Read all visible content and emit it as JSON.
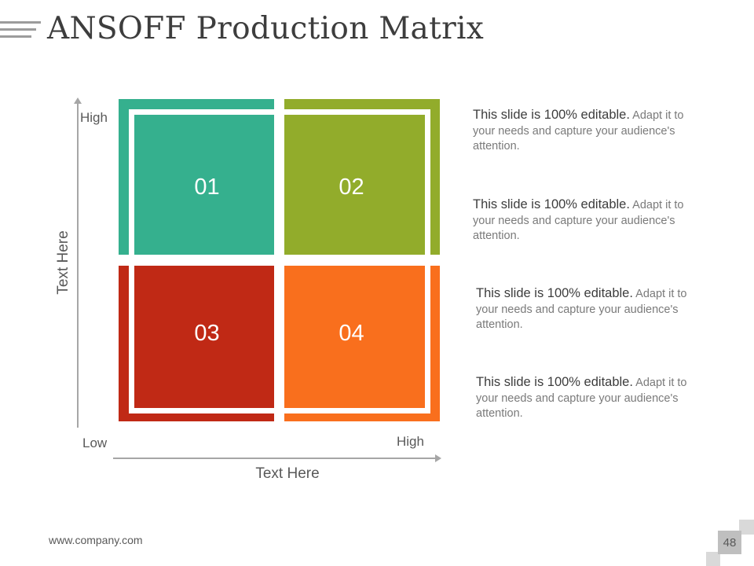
{
  "slide": {
    "title": "ANSOFF Production Matrix",
    "footer": "www.company.com",
    "page_number": "48"
  },
  "axes": {
    "y_title": "Text Here",
    "x_title": "Text Here",
    "y_high": "High",
    "x_low": "Low",
    "x_high": "High"
  },
  "quadrants": [
    {
      "label": "01",
      "color": "#35b08e"
    },
    {
      "label": "02",
      "color": "#92ac2b"
    },
    {
      "label": "03",
      "color": "#c02915"
    },
    {
      "label": "04",
      "color": "#f96f1d"
    }
  ],
  "descriptions": [
    {
      "bold": "This slide is 100% editable.",
      "rest": " Adapt it to your needs and capture your audience's attention."
    },
    {
      "bold": "This slide is 100% editable.",
      "rest": " Adapt it to your needs and capture your audience's attention."
    },
    {
      "bold": "This slide is 100% editable.",
      "rest": " Adapt it to your needs and capture your audience's attention."
    },
    {
      "bold": "This slide is 100% editable.",
      "rest": " Adapt it to your needs and capture your audience's attention."
    }
  ]
}
